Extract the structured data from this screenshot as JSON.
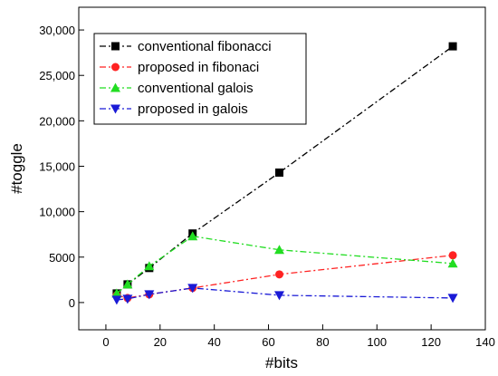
{
  "chart_data": {
    "type": "line",
    "xlabel": "#bits",
    "ylabel": "#toggle",
    "xlim": [
      -10,
      140
    ],
    "ylim": [
      -3000,
      32500
    ],
    "xticks": [
      0,
      20,
      40,
      60,
      80,
      100,
      120,
      140
    ],
    "yticks": [
      0,
      5000,
      10000,
      15000,
      20000,
      25000,
      30000
    ],
    "ytick_labels": [
      "0",
      "5000",
      "10,000",
      "15,000",
      "20,000",
      "25,000",
      "30,000"
    ],
    "legend_position": "top-left",
    "grid": false,
    "series": [
      {
        "name": "conventional fibonacci",
        "marker": "square",
        "color": "#000000",
        "x": [
          4,
          8,
          16,
          32,
          64,
          128
        ],
        "y": [
          1000,
          2000,
          3800,
          7600,
          14300,
          28200
        ]
      },
      {
        "name": "proposed in fibonaci",
        "marker": "circle",
        "color": "#ff2222",
        "x": [
          4,
          8,
          16,
          32,
          64,
          128
        ],
        "y": [
          800,
          500,
          900,
          1600,
          3100,
          5200
        ]
      },
      {
        "name": "conventional galois",
        "marker": "triangle-up",
        "color": "#22dd22",
        "x": [
          4,
          8,
          16,
          32,
          64,
          128
        ],
        "y": [
          1000,
          2000,
          4000,
          7300,
          5800,
          4300
        ]
      },
      {
        "name": "proposed in galois",
        "marker": "triangle-down",
        "color": "#1a1ad6",
        "x": [
          4,
          8,
          16,
          32,
          64,
          128
        ],
        "y": [
          300,
          400,
          900,
          1600,
          800,
          500
        ]
      }
    ]
  }
}
